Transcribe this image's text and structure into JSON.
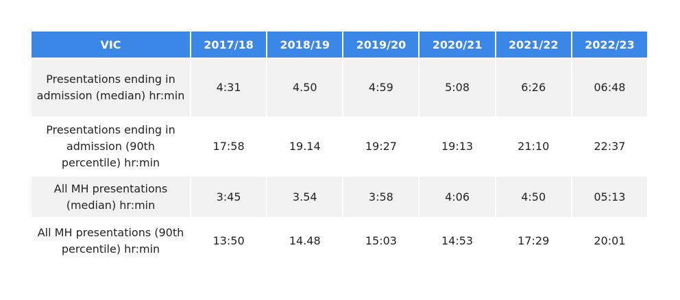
{
  "table": {
    "header": [
      "VIC",
      "2017/18",
      "2018/19",
      "2019/20",
      "2020/21",
      "2021/22",
      "2022/23"
    ],
    "rows": [
      [
        "Presentations ending in admission (median) hr:min",
        "4:31",
        "4.50",
        "4:59",
        "5:08",
        "6:26",
        "06:48"
      ],
      [
        "Presentations ending in admission (90th percentile) hr:min",
        "17:58",
        "19.14",
        "19:27",
        "19:13",
        "21:10",
        "22:37"
      ],
      [
        "All MH presentations (median) hr:min",
        "3:45",
        "3.54",
        "3:58",
        "4:06",
        "4:50",
        "05:13"
      ],
      [
        "All MH presentations (90th percentile) hr:min",
        "13:50",
        "14.48",
        "15:03",
        "14:53",
        "17:29",
        "20:01"
      ]
    ]
  }
}
